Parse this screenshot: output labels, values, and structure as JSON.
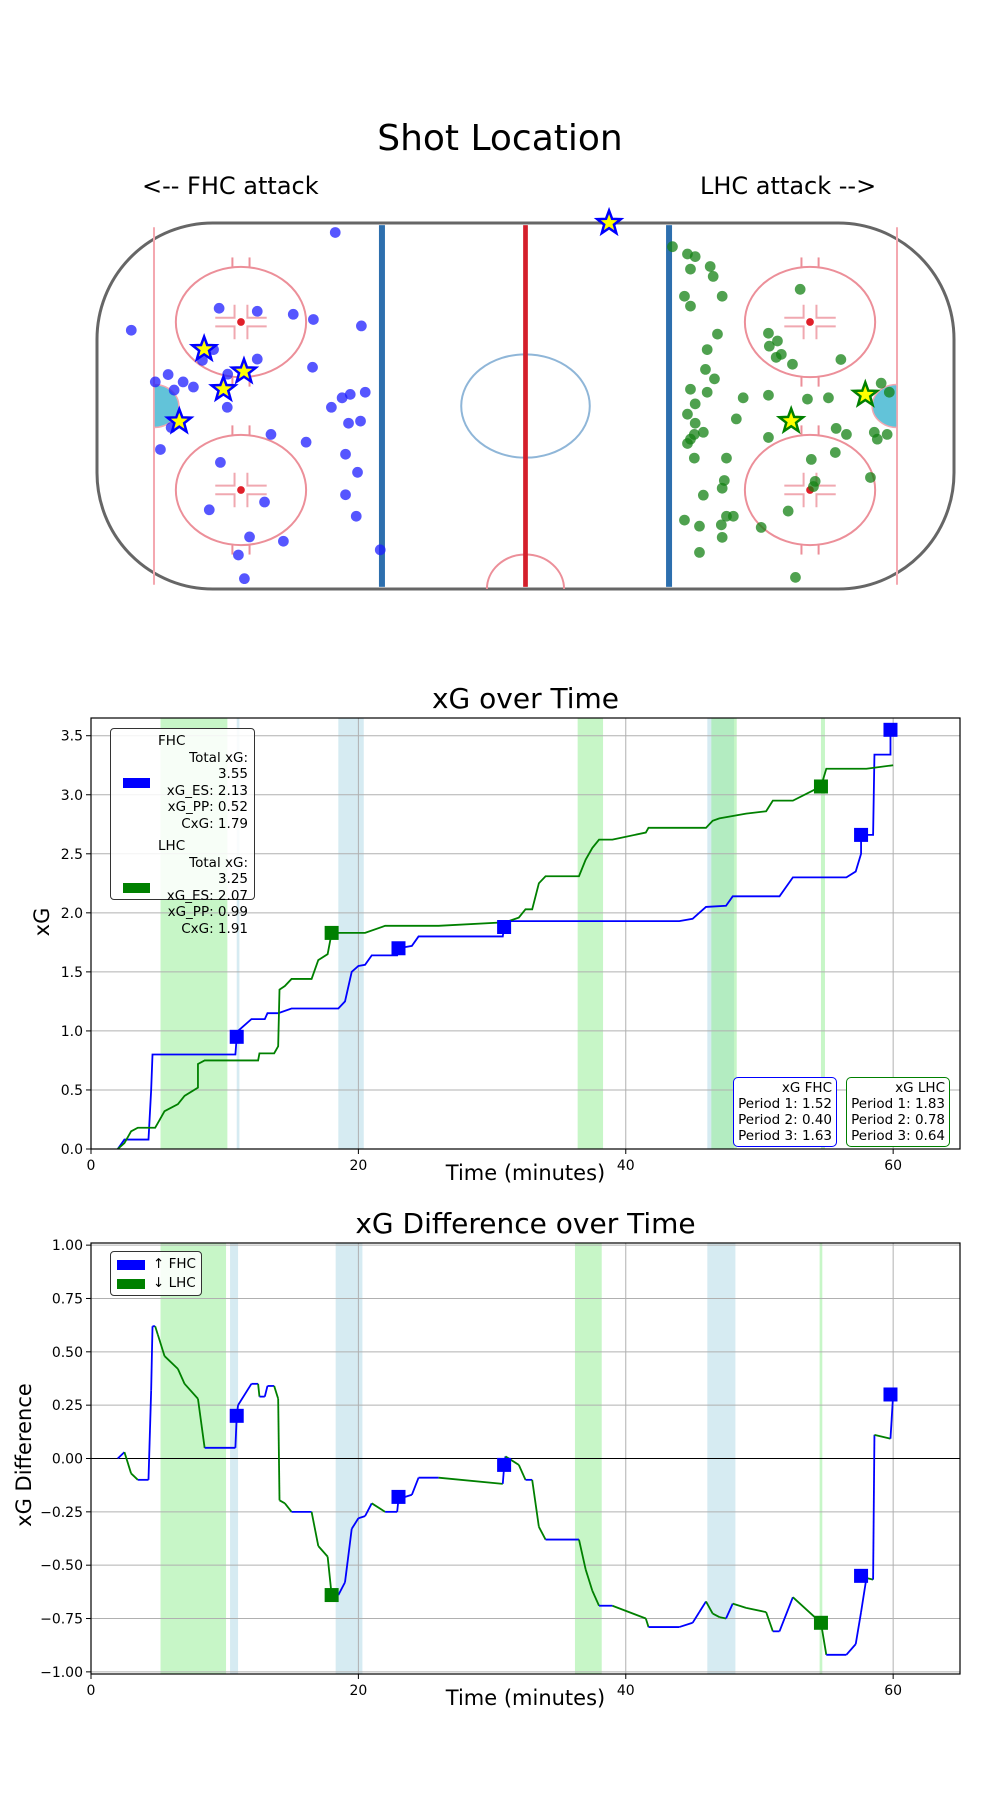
{
  "colors": {
    "fhc": "#0000ff",
    "lhc": "#008000",
    "band_green": "#90ee90",
    "band_blue": "#add8e6",
    "rink_red": "#e8a0a8",
    "goal_fill": "#ffff00"
  },
  "chart_data": [
    {
      "type": "scatter",
      "title": "Shot Location",
      "left_label": "<-- FHC attack",
      "right_label": "LHC attack -->",
      "xlim": [
        -100,
        100
      ],
      "ylim": [
        -42.5,
        42.5
      ],
      "series": [
        {
          "name": "FHC",
          "shots": [
            [
              -44.4,
              40.3
            ],
            [
              -92.0,
              17.6
            ],
            [
              -71.5,
              22.7
            ],
            [
              -62.6,
              22.0
            ],
            [
              -54.2,
              21.3
            ],
            [
              -49.5,
              20.1
            ],
            [
              -38.3,
              18.6
            ],
            [
              -72.8,
              13.1
            ],
            [
              -75.4,
              10.6
            ],
            [
              -62.6,
              10.9
            ],
            [
              -49.7,
              9.0
            ],
            [
              -83.4,
              7.3
            ],
            [
              -86.4,
              5.6
            ],
            [
              -79.9,
              5.6
            ],
            [
              -69.5,
              7.4
            ],
            [
              -82.0,
              3.7
            ],
            [
              -77.5,
              4.4
            ],
            [
              -45.3,
              -0.3
            ],
            [
              -42.8,
              1.9
            ],
            [
              -40.9,
              2.7
            ],
            [
              -37.4,
              3.2
            ],
            [
              -69.6,
              -0.3
            ],
            [
              -41.3,
              -4.0
            ],
            [
              -38.5,
              -3.5
            ],
            [
              -82.7,
              -5.0
            ],
            [
              -85.2,
              -10.1
            ],
            [
              -59.4,
              -6.6
            ],
            [
              -51.2,
              -8.4
            ],
            [
              -42.0,
              -11.2
            ],
            [
              -71.2,
              -13.1
            ],
            [
              -39.2,
              -15.4
            ],
            [
              -60.9,
              -22.3
            ],
            [
              -73.8,
              -24.1
            ],
            [
              -42.0,
              -20.6
            ],
            [
              -39.5,
              -25.6
            ],
            [
              -64.4,
              -30.4
            ],
            [
              -56.5,
              -31.4
            ],
            [
              -67.0,
              -34.6
            ],
            [
              -33.9,
              -33.4
            ],
            [
              -65.6,
              -40.1
            ]
          ],
          "goals": [
            [
              -75.0,
              13.2
            ],
            [
              -65.7,
              8.0
            ],
            [
              -70.5,
              3.9
            ],
            [
              -80.8,
              -3.6
            ],
            [
              19.5,
              42.5
            ]
          ]
        },
        {
          "name": "LHC",
          "shots": [
            [
              34.3,
              37.0
            ],
            [
              37.8,
              35.3
            ],
            [
              39.6,
              34.7
            ],
            [
              38.5,
              31.8
            ],
            [
              43.1,
              32.4
            ],
            [
              43.8,
              30.1
            ],
            [
              37.1,
              25.5
            ],
            [
              38.5,
              23.2
            ],
            [
              45.9,
              25.5
            ],
            [
              64.1,
              27.1
            ],
            [
              44.8,
              16.7
            ],
            [
              56.7,
              16.9
            ],
            [
              58.8,
              15.1
            ],
            [
              56.9,
              13.9
            ],
            [
              59.7,
              12.0
            ],
            [
              58.5,
              11.3
            ],
            [
              62.3,
              9.7
            ],
            [
              73.6,
              10.8
            ],
            [
              42.4,
              13.1
            ],
            [
              42.0,
              8.5
            ],
            [
              44.1,
              6.3
            ],
            [
              38.5,
              3.9
            ],
            [
              42.4,
              3.2
            ],
            [
              50.8,
              1.9
            ],
            [
              56.7,
              2.5
            ],
            [
              65.8,
              1.6
            ],
            [
              70.7,
              1.9
            ],
            [
              83.0,
              5.3
            ],
            [
              84.9,
              3.2
            ],
            [
              39.6,
              0.5
            ],
            [
              37.8,
              -1.9
            ],
            [
              49.2,
              -3.0
            ],
            [
              39.6,
              -4.0
            ],
            [
              41.5,
              -6.1
            ],
            [
              39.4,
              -6.6
            ],
            [
              38.5,
              -7.7
            ],
            [
              37.8,
              -8.7
            ],
            [
              56.7,
              -7.3
            ],
            [
              72.5,
              -5.2
            ],
            [
              74.9,
              -6.6
            ],
            [
              81.4,
              -6.1
            ],
            [
              82.1,
              -7.7
            ],
            [
              84.4,
              -6.6
            ],
            [
              72.3,
              -10.8
            ],
            [
              66.7,
              -12.4
            ],
            [
              39.4,
              -12.1
            ],
            [
              46.9,
              -12.1
            ],
            [
              80.5,
              -16.6
            ],
            [
              46.4,
              -17.3
            ],
            [
              45.9,
              -19.1
            ],
            [
              67.6,
              -17.5
            ],
            [
              67.2,
              -18.7
            ],
            [
              41.5,
              -20.7
            ],
            [
              61.3,
              -24.4
            ],
            [
              37.1,
              -26.5
            ],
            [
              40.6,
              -27.9
            ],
            [
              46.9,
              -25.6
            ],
            [
              48.5,
              -25.6
            ],
            [
              45.7,
              -27.6
            ],
            [
              55.0,
              -28.2
            ],
            [
              45.9,
              -30.5
            ],
            [
              40.6,
              -34.0
            ],
            [
              63.0,
              -39.8
            ]
          ],
          "goals": [
            [
              62.0,
              -3.5
            ],
            [
              79.3,
              2.6
            ]
          ]
        }
      ]
    },
    {
      "type": "line",
      "title": "xG over Time",
      "xlabel": "Time (minutes)",
      "ylabel": "xG",
      "xlim": [
        0,
        65
      ],
      "ylim": [
        0,
        3.65
      ],
      "xticks": [
        0,
        20,
        40,
        60
      ],
      "xtick_labels": [
        "0",
        "20",
        "40",
        "60"
      ],
      "yticks": [
        0,
        0.5,
        1,
        1.5,
        2,
        2.5,
        3,
        3.5
      ],
      "ytick_labels": [
        "0.0",
        "0.5",
        "1.0",
        "1.5",
        "2.0",
        "2.5",
        "3.0",
        "3.5"
      ],
      "grid": true,
      "bands": [
        {
          "start": 5.2,
          "end": 10.2,
          "color": "green"
        },
        {
          "start": 10.9,
          "end": 11.1,
          "color": "blue"
        },
        {
          "start": 18.5,
          "end": 20.4,
          "color": "blue"
        },
        {
          "start": 36.4,
          "end": 38.3,
          "color": "green"
        },
        {
          "start": 46.1,
          "end": 48.1,
          "color": "blue"
        },
        {
          "start": 46.4,
          "end": 48.3,
          "color": "green"
        },
        {
          "start": 54.6,
          "end": 54.9,
          "color": "green"
        }
      ],
      "series": [
        {
          "name": "FHC",
          "color": "#0000ff",
          "points": [
            [
              2,
              0
            ],
            [
              2.5,
              0.08
            ],
            [
              4.3,
              0.08
            ],
            [
              4.5,
              0.5
            ],
            [
              4.6,
              0.8
            ],
            [
              10.8,
              0.8
            ],
            [
              10.9,
              0.95
            ],
            [
              11,
              1.0
            ],
            [
              12,
              1.1
            ],
            [
              13,
              1.1
            ],
            [
              13.2,
              1.15
            ],
            [
              14,
              1.15
            ],
            [
              15,
              1.19
            ],
            [
              18.5,
              1.19
            ],
            [
              19,
              1.25
            ],
            [
              19.5,
              1.5
            ],
            [
              20,
              1.55
            ],
            [
              20.5,
              1.56
            ],
            [
              21,
              1.64
            ],
            [
              22.9,
              1.64
            ],
            [
              23,
              1.7
            ],
            [
              24,
              1.72
            ],
            [
              24.5,
              1.8
            ],
            [
              30.8,
              1.8
            ],
            [
              30.9,
              1.88
            ],
            [
              31,
              1.93
            ],
            [
              44,
              1.93
            ],
            [
              45,
              1.95
            ],
            [
              45.5,
              2.0
            ],
            [
              46,
              2.05
            ],
            [
              47.5,
              2.06
            ],
            [
              48,
              2.14
            ],
            [
              51.5,
              2.14
            ],
            [
              52.5,
              2.3
            ],
            [
              56.5,
              2.3
            ],
            [
              57.2,
              2.35
            ],
            [
              57.6,
              2.5
            ],
            [
              57.6,
              2.66
            ],
            [
              58.5,
              2.66
            ],
            [
              58.6,
              3.34
            ],
            [
              59.8,
              3.34
            ],
            [
              59.8,
              3.55
            ]
          ],
          "goals": [
            [
              10.9,
              0.95
            ],
            [
              23.0,
              1.7
            ],
            [
              30.9,
              1.88
            ],
            [
              57.6,
              2.66
            ],
            [
              59.8,
              3.55
            ]
          ]
        },
        {
          "name": "LHC",
          "color": "#008000",
          "points": [
            [
              2,
              0
            ],
            [
              2.5,
              0.05
            ],
            [
              3,
              0.15
            ],
            [
              3.5,
              0.18
            ],
            [
              4.8,
              0.18
            ],
            [
              5,
              0.22
            ],
            [
              5.5,
              0.32
            ],
            [
              6.5,
              0.38
            ],
            [
              7,
              0.45
            ],
            [
              8,
              0.52
            ],
            [
              8,
              0.72
            ],
            [
              8.5,
              0.75
            ],
            [
              12.5,
              0.75
            ],
            [
              12.6,
              0.81
            ],
            [
              13.7,
              0.81
            ],
            [
              14,
              0.87
            ],
            [
              14.1,
              1.35
            ],
            [
              14.5,
              1.38
            ],
            [
              15,
              1.44
            ],
            [
              16.5,
              1.44
            ],
            [
              17,
              1.6
            ],
            [
              17.7,
              1.65
            ],
            [
              18,
              1.83
            ],
            [
              20.5,
              1.83
            ],
            [
              22,
              1.89
            ],
            [
              26,
              1.89
            ],
            [
              31,
              1.92
            ],
            [
              32,
              1.96
            ],
            [
              32.5,
              2.03
            ],
            [
              33,
              2.03
            ],
            [
              33.5,
              2.25
            ],
            [
              34,
              2.31
            ],
            [
              36.5,
              2.31
            ],
            [
              37,
              2.45
            ],
            [
              37.5,
              2.55
            ],
            [
              38,
              2.62
            ],
            [
              39,
              2.62
            ],
            [
              41.5,
              2.68
            ],
            [
              41.7,
              2.72
            ],
            [
              46,
              2.72
            ],
            [
              46.5,
              2.78
            ],
            [
              47,
              2.8
            ],
            [
              49,
              2.84
            ],
            [
              50.5,
              2.86
            ],
            [
              51,
              2.95
            ],
            [
              52.5,
              2.95
            ],
            [
              54.6,
              3.07
            ],
            [
              55,
              3.22
            ],
            [
              58,
              3.22
            ],
            [
              60,
              3.25
            ]
          ],
          "goals": [
            [
              18.0,
              1.83
            ],
            [
              54.6,
              3.07
            ]
          ]
        }
      ],
      "legend": {
        "placement": "upper-left",
        "fhc": {
          "name": "FHC",
          "total": "Total xG: 3.55",
          "es": "xG_ES: 2.13",
          "pp": "xG_PP: 0.52",
          "cxg": "CxG: 1.79"
        },
        "lhc": {
          "name": "LHC",
          "total": "Total xG: 3.25",
          "es": "xG_ES: 2.07",
          "pp": "xG_PP: 0.99",
          "cxg": "CxG: 1.91"
        }
      },
      "period_boxes": {
        "fhc": {
          "title": "xG FHC",
          "p1": "Period 1: 1.52",
          "p2": "Period 2: 0.40",
          "p3": "Period 3: 1.63"
        },
        "lhc": {
          "title": "xG LHC",
          "p1": "Period 1: 1.83",
          "p2": "Period 2: 0.78",
          "p3": "Period 3: 0.64"
        }
      }
    },
    {
      "type": "line",
      "title": "xG Difference over Time",
      "xlabel": "Time (minutes)",
      "ylabel": "xG Difference",
      "xlim": [
        0,
        65
      ],
      "ylim": [
        -1.01,
        1.01
      ],
      "xticks": [
        0,
        20,
        40,
        60
      ],
      "xtick_labels": [
        "0",
        "20",
        "40",
        "60"
      ],
      "yticks": [
        1,
        0.75,
        0.5,
        0.25,
        0,
        -0.25,
        -0.5,
        -0.75,
        -1
      ],
      "ytick_labels": [
        "1.00",
        "0.75",
        "0.50",
        "0.25",
        "0.00",
        "−0.25",
        "−0.50",
        "−0.75",
        "−1.00"
      ],
      "grid": true,
      "bands": [
        {
          "start": 5.2,
          "end": 10.1,
          "color": "green"
        },
        {
          "start": 10.4,
          "end": 11.0,
          "color": "blue"
        },
        {
          "start": 18.3,
          "end": 20.3,
          "color": "blue"
        },
        {
          "start": 36.2,
          "end": 38.2,
          "color": "green"
        },
        {
          "start": 46.1,
          "end": 48.2,
          "color": "blue"
        },
        {
          "start": 54.5,
          "end": 54.7,
          "color": "green"
        }
      ],
      "derived_from": "FHC minus LHC",
      "goals": [
        {
          "team": "FHC",
          "points": [
            [
              10.9,
              0.2
            ],
            [
              23.0,
              -0.18
            ],
            [
              30.9,
              -0.03
            ],
            [
              57.6,
              -0.55
            ],
            [
              59.8,
              0.3
            ]
          ]
        },
        {
          "team": "LHC",
          "points": [
            [
              18.0,
              -0.64
            ],
            [
              54.6,
              -0.77
            ]
          ]
        }
      ],
      "legend": {
        "placement": "upper-left",
        "fhc": "↑ FHC",
        "lhc": "↓ LHC"
      }
    }
  ]
}
